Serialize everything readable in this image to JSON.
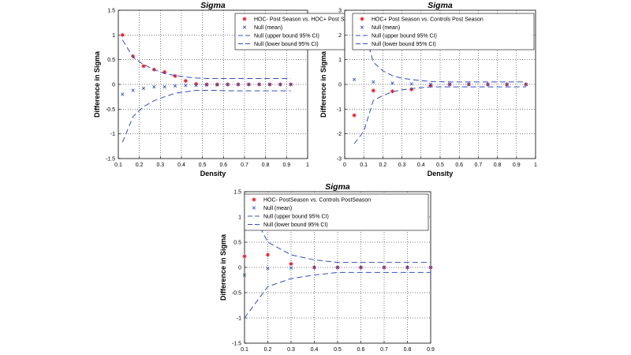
{
  "chart_data": [
    {
      "type": "scatter",
      "title": "Sigma",
      "xlabel": "Density",
      "ylabel": "Difference in Sigma",
      "xlim": [
        0.1,
        1
      ],
      "ylim": [
        -1.5,
        1.5
      ],
      "xticks": [
        "0.1",
        "0.2",
        "0.3",
        "0.4",
        "0.5",
        "0.6",
        "0.7",
        "0.8",
        "0.9",
        "1"
      ],
      "yticks": [
        "1.5",
        "1",
        "0.5",
        "0",
        "-0.5",
        "-1",
        "-1.5"
      ],
      "grid": true,
      "legend_position": "top-right",
      "series": [
        {
          "name": "HOC- Post Season vs. HOC+ Post Season",
          "marker": "plus-star",
          "color": "#e8202a",
          "x": [
            0.12,
            0.17,
            0.22,
            0.27,
            0.32,
            0.37,
            0.42,
            0.47,
            0.52,
            0.57,
            0.62,
            0.67,
            0.72,
            0.77,
            0.82,
            0.87,
            0.92
          ],
          "y": [
            1.0,
            0.57,
            0.37,
            0.3,
            0.25,
            0.17,
            0.07,
            0.01,
            0.0,
            0.0,
            0.0,
            0.0,
            0.0,
            0.0,
            0.0,
            0.0,
            0.0
          ]
        },
        {
          "name": "Null (mean)",
          "marker": "x",
          "color": "#3050c0",
          "x": [
            0.12,
            0.17,
            0.22,
            0.27,
            0.32,
            0.37,
            0.42,
            0.47,
            0.52,
            0.57,
            0.62,
            0.67,
            0.72,
            0.77,
            0.82,
            0.87,
            0.92
          ],
          "y": [
            -0.2,
            -0.12,
            -0.08,
            -0.05,
            -0.05,
            -0.03,
            -0.02,
            -0.02,
            -0.01,
            -0.01,
            0.0,
            0.0,
            0.0,
            0.0,
            0.0,
            0.0,
            0.0
          ]
        },
        {
          "name": "Null (upper bound 95% CI)",
          "marker": "dash",
          "color": "#3050c0",
          "x": [
            0.12,
            0.17,
            0.22,
            0.27,
            0.32,
            0.37,
            0.42,
            0.47,
            0.52,
            0.57,
            0.62,
            0.67,
            0.72,
            0.77,
            0.82,
            0.87,
            0.92
          ],
          "y": [
            0.9,
            0.55,
            0.4,
            0.3,
            0.22,
            0.18,
            0.15,
            0.13,
            0.12,
            0.12,
            0.12,
            0.12,
            0.12,
            0.12,
            0.12,
            0.12,
            0.12
          ]
        },
        {
          "name": "Null (lower bound 95% CI)",
          "marker": "dash",
          "color": "#3050c0",
          "x": [
            0.12,
            0.17,
            0.22,
            0.27,
            0.32,
            0.37,
            0.42,
            0.47,
            0.52,
            0.57,
            0.62,
            0.67,
            0.72,
            0.77,
            0.82,
            0.87,
            0.92
          ],
          "y": [
            -1.17,
            -0.65,
            -0.45,
            -0.33,
            -0.25,
            -0.18,
            -0.15,
            -0.12,
            -0.12,
            -0.12,
            -0.13,
            -0.13,
            -0.13,
            -0.13,
            -0.13,
            -0.13,
            -0.13
          ]
        }
      ]
    },
    {
      "type": "scatter",
      "title": "Sigma",
      "xlabel": "Density",
      "ylabel": "Difference in Sigma",
      "xlim": [
        0,
        1
      ],
      "ylim": [
        -3,
        3
      ],
      "xticks": [
        "0",
        "0.1",
        "0.2",
        "0.3",
        "0.4",
        "0.5",
        "0.6",
        "0.7",
        "0.8",
        "0.9",
        "1"
      ],
      "yticks": [
        "3",
        "2",
        "1",
        "0",
        "-1",
        "-2",
        "-3"
      ],
      "grid": true,
      "legend_position": "top-right",
      "series": [
        {
          "name": "HOC+ Post Season vs. Controls Post Season",
          "marker": "plus-star",
          "color": "#e8202a",
          "x": [
            0.05,
            0.15,
            0.25,
            0.35,
            0.45,
            0.55,
            0.65,
            0.75,
            0.85,
            0.95
          ],
          "y": [
            -1.25,
            -0.25,
            -0.28,
            -0.2,
            -0.05,
            0.0,
            0.0,
            0.0,
            0.0,
            0.0
          ]
        },
        {
          "name": "Null (mean)",
          "marker": "x",
          "color": "#3050c0",
          "x": [
            0.05,
            0.15,
            0.25,
            0.35,
            0.45,
            0.55,
            0.65,
            0.75,
            0.85,
            0.95
          ],
          "y": [
            0.2,
            0.1,
            0.05,
            0.02,
            0.01,
            0.0,
            0.0,
            0.0,
            0.0,
            0.0
          ]
        },
        {
          "name": "Null (upper bound 95% CI)",
          "marker": "dash",
          "color": "#3050c0",
          "x": [
            0.05,
            0.1,
            0.15,
            0.2,
            0.25,
            0.3,
            0.35,
            0.4,
            0.45,
            0.55,
            0.65,
            0.75,
            0.85,
            0.95
          ],
          "y": [
            2.75,
            2.3,
            0.9,
            0.55,
            0.35,
            0.25,
            0.2,
            0.15,
            0.12,
            0.1,
            0.1,
            0.1,
            0.1,
            0.1
          ]
        },
        {
          "name": "Null (lower bound 95% CI)",
          "marker": "dash",
          "color": "#3050c0",
          "x": [
            0.05,
            0.1,
            0.15,
            0.2,
            0.25,
            0.3,
            0.35,
            0.4,
            0.45,
            0.55,
            0.65,
            0.75,
            0.85,
            0.95
          ],
          "y": [
            -2.4,
            -1.9,
            -0.65,
            -0.45,
            -0.3,
            -0.22,
            -0.17,
            -0.13,
            -0.1,
            -0.1,
            -0.1,
            -0.1,
            -0.1,
            -0.1
          ]
        }
      ]
    },
    {
      "type": "scatter",
      "title": "Sigma",
      "xlabel": "Density",
      "ylabel": "Difference in Sigma",
      "xlim": [
        0.1,
        0.9
      ],
      "ylim": [
        -1.5,
        1.5
      ],
      "xticks": [
        "0.1",
        "0.2",
        "0.3",
        "0.4",
        "0.5",
        "0.6",
        "0.7",
        "0.8",
        "0.9"
      ],
      "yticks": [
        "1.5",
        "1",
        "0.5",
        "0",
        "-0.5",
        "-1",
        "-1.5"
      ],
      "grid": true,
      "legend_position": "top-right",
      "series": [
        {
          "name": "HOC- PostSeason vs. Controls PostSeason",
          "marker": "plus-star",
          "color": "#e8202a",
          "x": [
            0.1,
            0.2,
            0.3,
            0.4,
            0.5,
            0.6,
            0.7,
            0.8,
            0.9
          ],
          "y": [
            0.22,
            0.25,
            0.07,
            0.0,
            0.0,
            0.0,
            0.0,
            0.0,
            0.0
          ]
        },
        {
          "name": "Null (mean)",
          "marker": "x",
          "color": "#3050c0",
          "x": [
            0.1,
            0.2,
            0.3,
            0.4,
            0.5,
            0.6,
            0.7,
            0.8,
            0.9
          ],
          "y": [
            -0.15,
            -0.02,
            -0.01,
            0.0,
            0.0,
            0.0,
            0.0,
            0.0,
            0.0
          ]
        },
        {
          "name": "Null (upper bound 95% CI)",
          "marker": "dash",
          "color": "#3050c0",
          "x": [
            0.1,
            0.2,
            0.3,
            0.4,
            0.5,
            0.6,
            0.7,
            0.8,
            0.9
          ],
          "y": [
            1.4,
            0.5,
            0.25,
            0.15,
            0.1,
            0.1,
            0.1,
            0.1,
            0.1
          ]
        },
        {
          "name": "Null (lower bound 95% CI)",
          "marker": "dash",
          "color": "#3050c0",
          "x": [
            0.1,
            0.2,
            0.3,
            0.4,
            0.5,
            0.6,
            0.7,
            0.8,
            0.9
          ],
          "y": [
            -1.0,
            -0.38,
            -0.22,
            -0.15,
            -0.1,
            -0.1,
            -0.1,
            -0.1,
            -0.1
          ]
        }
      ]
    }
  ]
}
